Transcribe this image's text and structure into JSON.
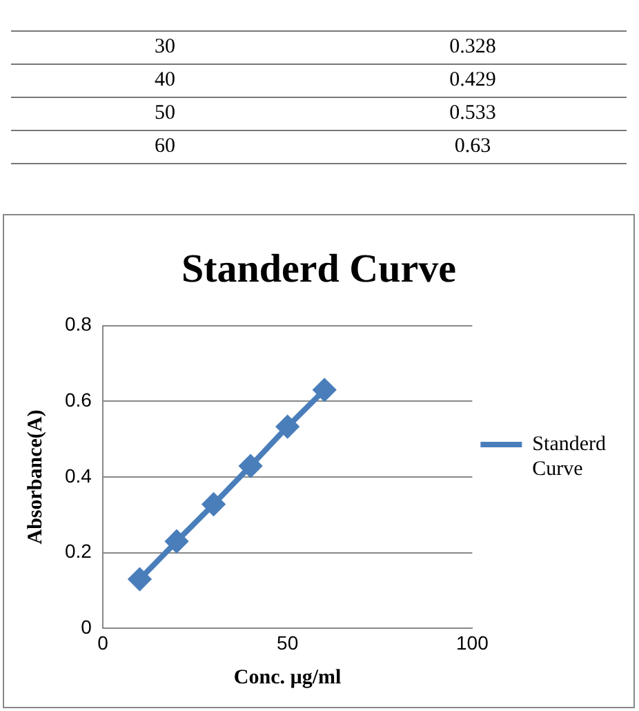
{
  "chart_data": {
    "type": "line",
    "title": "Standerd Curve",
    "xlabel": "Conc. µg/ml",
    "ylabel": "Absorbance(A)",
    "annotations": [
      "30",
      "0.328",
      "40",
      "0.429",
      "50",
      "0.533",
      "60",
      "0.63"
    ],
    "x": [
      10,
      20,
      30,
      40,
      50,
      60
    ],
    "series": [
      {
        "name": "Standerd Curve",
        "color": "#4a7ebb",
        "values": [
          0.13,
          0.23,
          0.328,
          0.429,
          0.533,
          0.63
        ]
      }
    ],
    "xlim": [
      0,
      100
    ],
    "xticks": [
      0,
      50,
      100
    ],
    "ylim": [
      0,
      0.8
    ],
    "yticks": [
      0,
      0.2,
      0.4,
      0.6,
      0.8
    ],
    "grid": "y",
    "legend": "right",
    "marker": "diamond",
    "line_style": "solid"
  }
}
